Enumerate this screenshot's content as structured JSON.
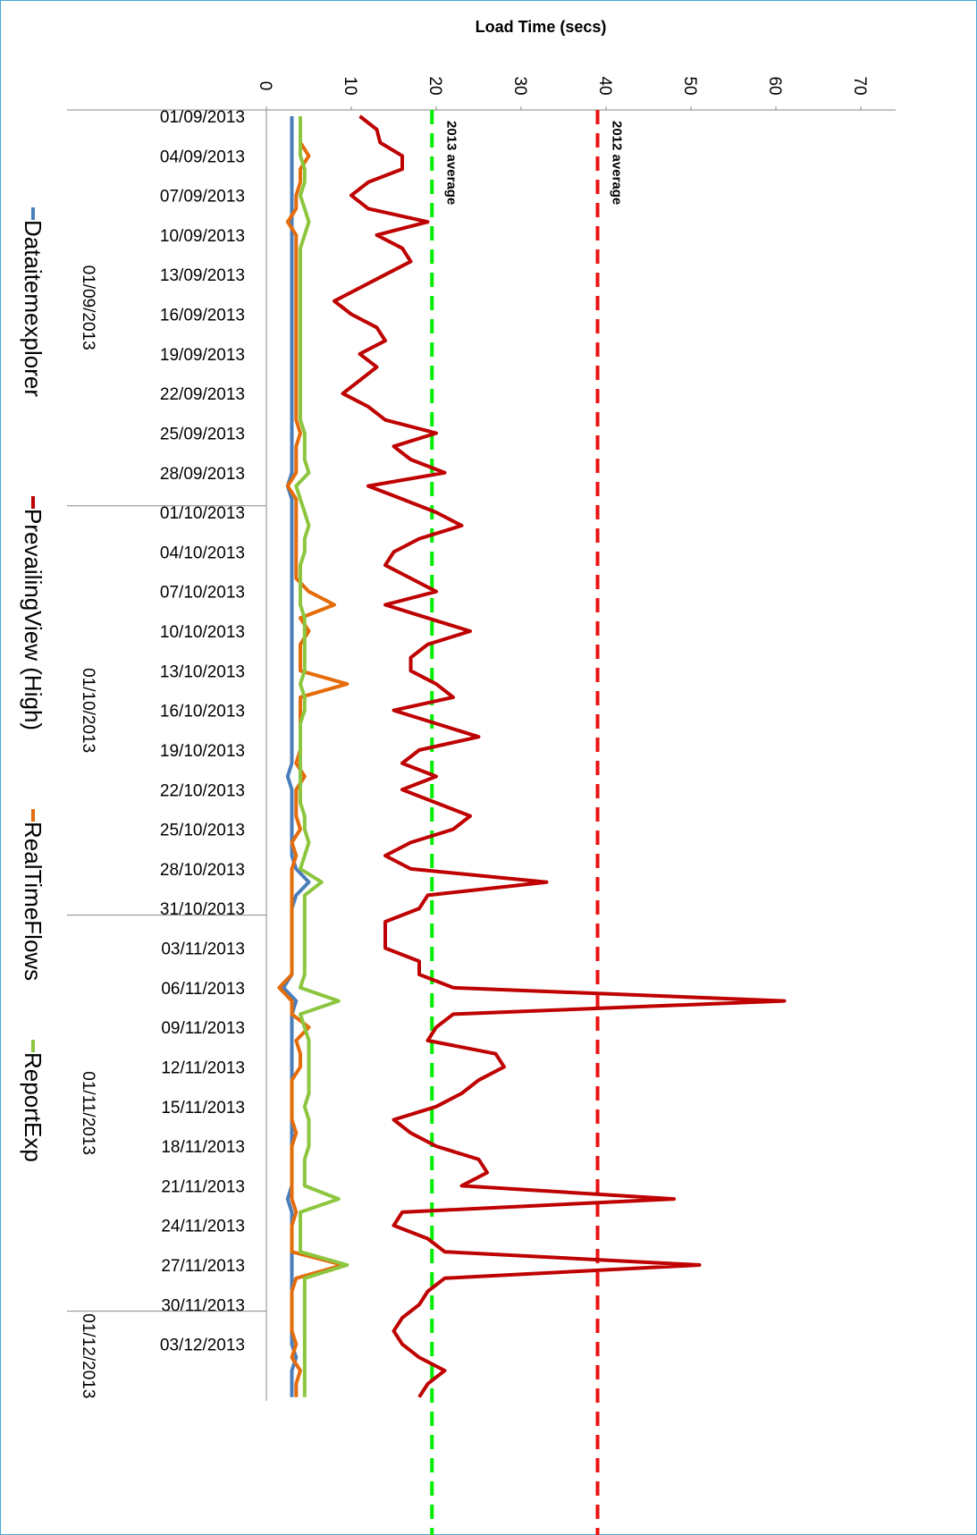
{
  "chart_data": {
    "type": "line",
    "orientation": "vertical-category",
    "x_axis_label": "Load Time (secs)",
    "xlim": [
      0,
      70
    ],
    "xticks": [
      0,
      10,
      20,
      30,
      40,
      50,
      60,
      70
    ],
    "categories": [
      "01/09/2013",
      null,
      null,
      "04/09/2013",
      null,
      null,
      "07/09/2013",
      null,
      null,
      "10/09/2013",
      null,
      null,
      "13/09/2013",
      null,
      null,
      "16/09/2013",
      null,
      null,
      "19/09/2013",
      null,
      null,
      "22/09/2013",
      null,
      null,
      "25/09/2013",
      null,
      null,
      "28/09/2013",
      null,
      null,
      "01/10/2013",
      null,
      null,
      "04/10/2013",
      null,
      null,
      "07/10/2013",
      null,
      null,
      "10/10/2013",
      null,
      null,
      "13/10/2013",
      null,
      null,
      "16/10/2013",
      null,
      null,
      "19/10/2013",
      null,
      null,
      "22/10/2013",
      null,
      null,
      "25/10/2013",
      null,
      null,
      "28/10/2013",
      null,
      null,
      "31/10/2013",
      null,
      null,
      "03/11/2013",
      null,
      null,
      "06/11/2013",
      null,
      null,
      "09/11/2013",
      null,
      null,
      "12/11/2013",
      null,
      null,
      "15/11/2013",
      null,
      null,
      "18/11/2013",
      null,
      null,
      "21/11/2013",
      null,
      null,
      "24/11/2013",
      null,
      null,
      "27/11/2013",
      null,
      null,
      "30/11/2013",
      null,
      null,
      "03/12/2013",
      null,
      null,
      null,
      null
    ],
    "groups": [
      {
        "label": "01/09/2013",
        "from": 0,
        "to": 29
      },
      {
        "label": "01/10/2013",
        "from": 30,
        "to": 60
      },
      {
        "label": "01/11/2013",
        "from": 61,
        "to": 90
      },
      {
        "label": "01/12/2013",
        "from": 91,
        "to": 97
      }
    ],
    "series": [
      {
        "name": "Dataitemexplorer",
        "color": "#4a7ebb",
        "values": [
          3,
          3,
          3,
          3,
          3,
          3,
          3,
          3,
          3,
          3,
          3,
          3,
          3,
          3,
          3,
          3,
          3,
          3,
          3,
          3,
          3,
          3,
          3,
          3,
          3,
          3,
          3,
          3,
          2.5,
          3,
          3,
          3,
          3,
          3,
          3,
          3,
          3,
          3,
          3,
          3,
          3,
          3,
          3,
          3,
          3,
          3,
          3,
          3,
          3,
          3,
          2.5,
          3,
          3,
          3,
          3,
          3,
          3,
          3.5,
          5,
          3.5,
          3,
          3,
          3,
          3,
          3,
          3,
          2,
          3.5,
          3,
          3,
          3,
          3,
          3,
          3,
          3,
          3,
          3,
          3,
          3,
          3,
          3,
          3,
          2.5,
          3,
          3,
          3,
          3,
          3,
          3,
          3,
          3,
          3,
          3,
          3,
          3.5,
          3,
          3,
          3
        ]
      },
      {
        "name": "PrevailingView (High)",
        "color": "#be0000",
        "values": [
          11,
          13,
          13.4,
          16,
          16,
          12,
          10,
          12,
          19,
          13,
          16,
          17,
          14,
          11,
          8,
          10,
          13,
          14,
          11,
          13,
          11,
          9,
          12,
          14,
          20,
          15,
          17,
          21,
          12,
          16,
          20,
          23,
          18,
          15,
          14,
          17,
          20,
          14,
          19,
          24,
          19,
          17,
          17,
          20,
          22,
          15,
          20,
          25,
          18,
          16,
          20,
          16,
          20,
          24,
          22,
          17,
          14,
          17,
          33,
          19,
          18,
          14,
          14,
          14,
          18,
          18,
          22,
          61,
          22,
          20,
          19,
          27,
          28,
          25,
          23,
          20,
          15,
          17,
          20,
          25,
          26,
          23,
          48,
          16,
          15,
          19,
          21,
          51,
          21,
          19,
          18,
          16,
          15,
          16,
          18,
          21,
          19,
          18
        ]
      },
      {
        "name": "RealTimeFlows",
        "color": "#e46c0a",
        "values": [
          4,
          4,
          4,
          5,
          4,
          4,
          3.5,
          3.5,
          2.5,
          3.5,
          3.5,
          3.5,
          3.5,
          3.5,
          3.5,
          3.5,
          3.5,
          3.5,
          3.5,
          3.5,
          3.5,
          3.5,
          3.5,
          3.5,
          4,
          3.5,
          3.5,
          3.5,
          2.5,
          3.5,
          3.5,
          3.5,
          3.5,
          3.5,
          3.5,
          3.5,
          5,
          8,
          4,
          5,
          4,
          4,
          4,
          9.5,
          4,
          4,
          4,
          4,
          4,
          3.5,
          4.5,
          3.5,
          3.5,
          3.5,
          4,
          3,
          3.5,
          3,
          3,
          3,
          3,
          3,
          3,
          3,
          3,
          3,
          1.5,
          3,
          3,
          5,
          3.5,
          4,
          4,
          3,
          3,
          3,
          3,
          3.5,
          3,
          3,
          3,
          3,
          3,
          3.5,
          3,
          3,
          3,
          9,
          3.5,
          3,
          3,
          3,
          3,
          3.5,
          3,
          4,
          3.5,
          3.5
        ]
      },
      {
        "name": "ReportExp",
        "color": "#8cc63f",
        "values": [
          4,
          4,
          4,
          4,
          4.5,
          4.5,
          4,
          4.5,
          5,
          4.5,
          4,
          4,
          4,
          4,
          4,
          4,
          4,
          4,
          4,
          4,
          4,
          4,
          4,
          4,
          4.5,
          4.5,
          4.5,
          5,
          3.5,
          4,
          4.5,
          5,
          4.5,
          4.5,
          4,
          4,
          4,
          4,
          4.5,
          4.5,
          4.5,
          4.5,
          4.5,
          4,
          4.5,
          4.5,
          4,
          4,
          4,
          4,
          4,
          4,
          4,
          4.5,
          4.5,
          5,
          4.5,
          4,
          6.5,
          4.5,
          4.5,
          4.5,
          4.5,
          4.5,
          4.5,
          4.5,
          4,
          8.5,
          4,
          4.5,
          5,
          5,
          5,
          5,
          5,
          4.5,
          5,
          5,
          5,
          4.5,
          4.5,
          4.5,
          8.5,
          4,
          4,
          4,
          4,
          9.5,
          4.5,
          4.5,
          4.5,
          4.5,
          4.5,
          4.5,
          4.5,
          4.5,
          4.5,
          4.5
        ]
      }
    ],
    "reference_lines": [
      {
        "label": "2013 average",
        "value": 19.5,
        "color": "#00ee00"
      },
      {
        "label": "2012 average",
        "value": 39,
        "color": "#ee1111"
      }
    ]
  }
}
